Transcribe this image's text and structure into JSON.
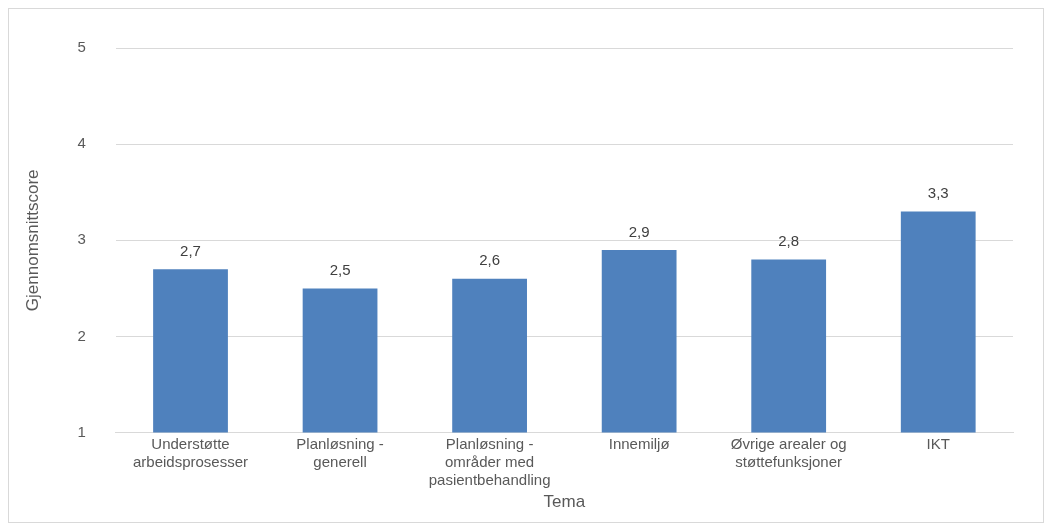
{
  "chart_data": {
    "type": "bar",
    "xlabel": "Tema",
    "ylabel": "Gjennomsnittscore",
    "categories": [
      "Understøtte arbeidsprosesser",
      "Planløsning - generell",
      "Planløsning - områder med pasientbehandling",
      "Innemiljø",
      "Øvrige arealer og støttefunksjoner",
      "IKT"
    ],
    "values": [
      2.7,
      2.5,
      2.6,
      2.9,
      2.8,
      3.3
    ],
    "value_labels": [
      "2,7",
      "2,5",
      "2,6",
      "2,9",
      "2,8",
      "3,3"
    ],
    "color": "#4f81bd",
    "ylim": [
      1,
      5
    ],
    "yticks": [
      1,
      2,
      3,
      4,
      5
    ],
    "grid": "y",
    "legend": false
  }
}
